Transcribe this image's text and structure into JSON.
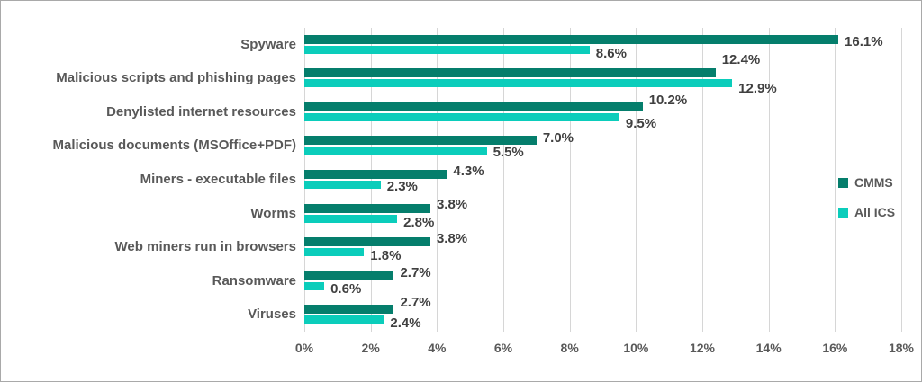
{
  "chart_data": {
    "type": "bar",
    "orientation": "horizontal",
    "title": "",
    "xlabel": "",
    "ylabel": "",
    "categories": [
      "Spyware",
      "Malicious scripts and phishing pages",
      "Denylisted internet resources",
      "Malicious documents (MSOffice+PDF)",
      "Miners - executable files",
      "Worms",
      "Web miners run in browsers",
      "Ransomware",
      "Viruses"
    ],
    "series": [
      {
        "name": "CMMS",
        "color": "#057e6c",
        "values": [
          16.1,
          12.4,
          10.2,
          7.0,
          4.3,
          3.8,
          3.8,
          2.7,
          2.7
        ]
      },
      {
        "name": "All ICS",
        "color": "#0bcdbb",
        "values": [
          8.6,
          12.9,
          9.5,
          5.5,
          2.3,
          2.8,
          1.8,
          0.6,
          2.4
        ]
      }
    ],
    "value_label_format": "{value}%",
    "xticks": [
      "0%",
      "2%",
      "4%",
      "6%",
      "8%",
      "10%",
      "12%",
      "14%",
      "16%",
      "18%"
    ],
    "xlim": [
      0,
      18
    ],
    "grid": "vertical",
    "legend_position": "right"
  },
  "style_colors": {
    "category_label": "#595959",
    "value_label": "#404040",
    "tick_label": "#595959",
    "gridline": "#d6d6d6",
    "figure_border": "#a9a9a9",
    "background": "#ffffff"
  }
}
